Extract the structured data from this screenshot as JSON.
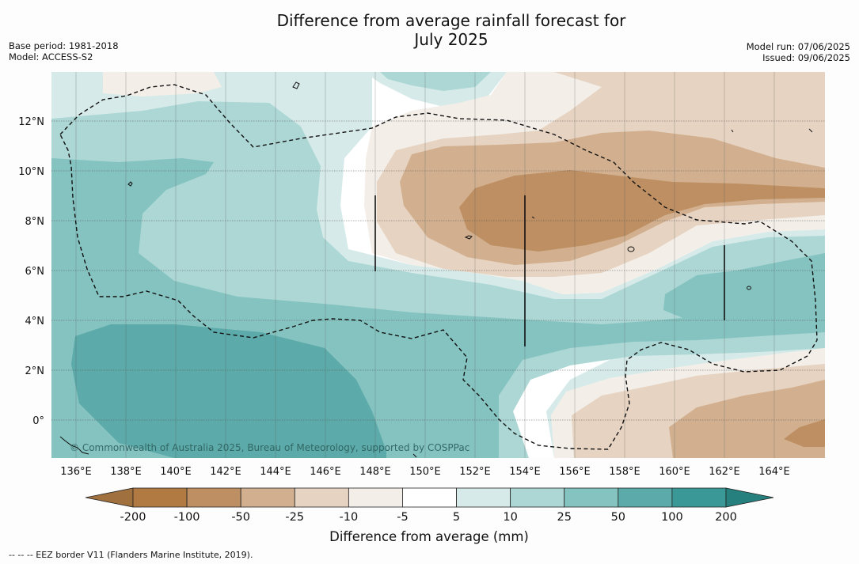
{
  "title_line1": "Difference from average rainfall forecast for",
  "title_line2": "July 2025",
  "base_period": "Base period: 1981-2018",
  "model": "Model: ACCESS-S2",
  "model_run": "Model run: 07/06/2025",
  "issued": "Issued: 09/06/2025",
  "lon_ticks": [
    "136°E",
    "138°E",
    "140°E",
    "142°E",
    "144°E",
    "146°E",
    "148°E",
    "150°E",
    "152°E",
    "154°E",
    "156°E",
    "158°E",
    "160°E",
    "162°E",
    "164°E"
  ],
  "lat_ticks": [
    "12°N",
    "10°N",
    "8°N",
    "6°N",
    "4°N",
    "2°N",
    "0°"
  ],
  "copyright": "© Commonwealth of Australia 2025, Bureau of Meteorology, supported by COSPPac",
  "colorbar": {
    "labels": [
      "-200",
      "-100",
      "-50",
      "-25",
      "-10",
      "-5",
      "5",
      "10",
      "25",
      "50",
      "100",
      "200"
    ],
    "colors": [
      "#a0703e",
      "#b07a42",
      "#bd8f62",
      "#d2b08f",
      "#e6d3c1",
      "#f3eee8",
      "#ffffff",
      "#d6ebe9",
      "#acd7d5",
      "#84c3c0",
      "#5cabaa",
      "#3a9996",
      "#26807d"
    ],
    "title": "Difference from average (mm)"
  },
  "legend_note": "--  --  -- EEZ border V11 (Flanders Marine Institute, 2019)."
}
